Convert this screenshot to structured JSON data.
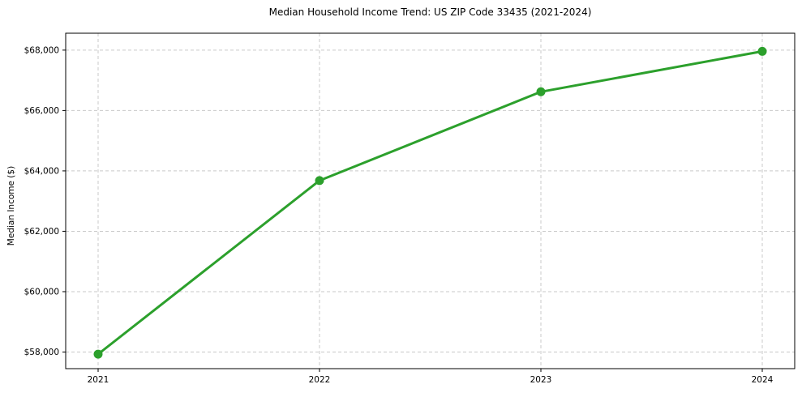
{
  "chart_data": {
    "type": "line",
    "title": "Median Household Income Trend: US ZIP Code 33435 (2021-2024)",
    "xlabel": "",
    "ylabel": "Median Income ($)",
    "categories": [
      "2021",
      "2022",
      "2023",
      "2024"
    ],
    "series": [
      {
        "name": "Median Household Income",
        "values": [
          57930,
          63680,
          66620,
          67960
        ]
      }
    ],
    "yticks": [
      58000,
      60000,
      62000,
      64000,
      66000,
      68000
    ],
    "ytick_labels": [
      "$58,000",
      "$60,000",
      "$62,000",
      "$64,000",
      "$66,000",
      "$68,000"
    ],
    "ylim": [
      57450,
      68560
    ],
    "grid": true,
    "legend": "none",
    "colors": {
      "line": "#2ca02c",
      "marker": "#2ca02c",
      "grid": "#c9c9c9",
      "spine": "#000000",
      "background": "#ffffff",
      "text": "#000000"
    }
  }
}
